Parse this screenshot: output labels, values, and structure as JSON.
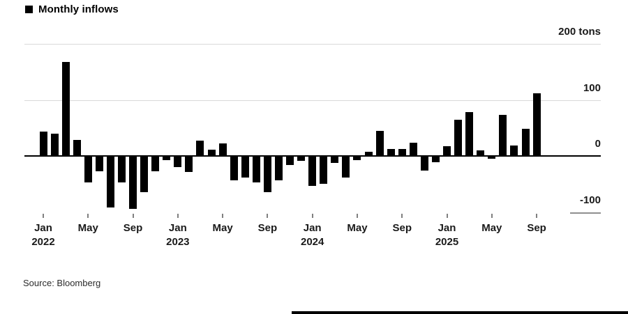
{
  "legend": {
    "label": "Monthly inflows",
    "swatch_color": "#000000"
  },
  "source": "Source: Bloomberg",
  "colors": {
    "bar": "#000000",
    "grid": "#d9d9d9",
    "zero_line": "#000000",
    "negative_gridline_segment": "#8f8f8f",
    "tick": "#808080",
    "text": "#1a1a1a"
  },
  "chart_data": {
    "type": "bar",
    "title": "Monthly inflows",
    "unit": "tons",
    "ylim": [
      -100,
      200
    ],
    "grid": true,
    "legend_position": "top-left",
    "yticks": [
      {
        "value": 200,
        "label": "200 tons"
      },
      {
        "value": 100,
        "label": "100"
      },
      {
        "value": 0,
        "label": "0"
      },
      {
        "value": -100,
        "label": "-100"
      }
    ],
    "categories": [
      "Jan 2022",
      "Feb 2022",
      "Mar 2022",
      "Apr 2022",
      "May 2022",
      "Jun 2022",
      "Jul 2022",
      "Aug 2022",
      "Sep 2022",
      "Oct 2022",
      "Nov 2022",
      "Dec 2022",
      "Jan 2023",
      "Feb 2023",
      "Mar 2023",
      "Apr 2023",
      "May 2023",
      "Jun 2023",
      "Jul 2023",
      "Aug 2023",
      "Sep 2023",
      "Oct 2023",
      "Nov 2023",
      "Dec 2023",
      "Jan 2024",
      "Feb 2024",
      "Mar 2024",
      "Apr 2024",
      "May 2024",
      "Jun 2024",
      "Jul 2024",
      "Aug 2024",
      "Sep 2024",
      "Oct 2024",
      "Nov 2024",
      "Dec 2024",
      "Jan 2025",
      "Feb 2025",
      "Mar 2025",
      "Apr 2025",
      "May 2025",
      "Jun 2025",
      "Jul 2025",
      "Aug 2025",
      "Sep 2025"
    ],
    "values": [
      43,
      40,
      168,
      28,
      -47,
      -27,
      -92,
      -47,
      -95,
      -64,
      -27,
      -8,
      -20,
      -28,
      27,
      11,
      22,
      -43,
      -39,
      -47,
      -64,
      -43,
      -16,
      -9,
      -53,
      -50,
      -12,
      -38,
      -8,
      8,
      45,
      13,
      12,
      23,
      -26,
      -11,
      18,
      65,
      78,
      10,
      -5,
      73,
      19,
      49,
      112
    ],
    "xticks": [
      {
        "index": 0,
        "month": "Jan",
        "year": "2022"
      },
      {
        "index": 4,
        "month": "May",
        "year": ""
      },
      {
        "index": 8,
        "month": "Sep",
        "year": ""
      },
      {
        "index": 12,
        "month": "Jan",
        "year": "2023"
      },
      {
        "index": 16,
        "month": "May",
        "year": ""
      },
      {
        "index": 20,
        "month": "Sep",
        "year": ""
      },
      {
        "index": 24,
        "month": "Jan",
        "year": "2024"
      },
      {
        "index": 28,
        "month": "May",
        "year": ""
      },
      {
        "index": 32,
        "month": "Sep",
        "year": ""
      },
      {
        "index": 36,
        "month": "Jan",
        "year": "2025"
      },
      {
        "index": 40,
        "month": "May",
        "year": ""
      },
      {
        "index": 44,
        "month": "Sep",
        "year": ""
      }
    ]
  }
}
